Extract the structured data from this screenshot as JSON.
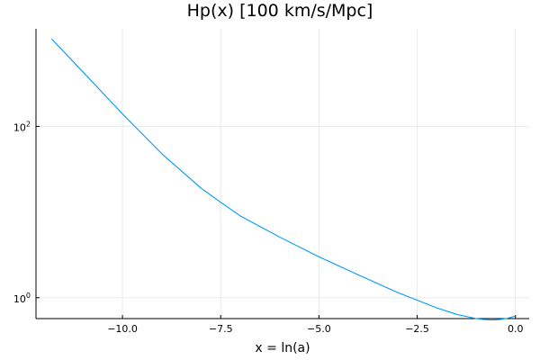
{
  "chart_data": {
    "type": "line",
    "title": "Hp(x) [100 km/s/Mpc]",
    "xlabel": "x = ln(a)",
    "ylabel": "",
    "yscale": "log10",
    "xlim": [
      -12.2,
      0.35
    ],
    "ylim": [
      0.57,
      1380
    ],
    "grid": true,
    "legend": "none",
    "x_ticks": [
      -10.0,
      -7.5,
      -5.0,
      -2.5,
      0.0
    ],
    "x_tick_labels": [
      "−10.0",
      "−7.5",
      "−5.0",
      "−2.5",
      "0.0"
    ],
    "y_ticks": [
      {
        "value": 1,
        "base": "10",
        "exp": "0"
      },
      {
        "value": 100,
        "base": "10",
        "exp": "2"
      }
    ],
    "series": [
      {
        "color": "#009AFA",
        "x": [
          -11.8,
          -11.0,
          -10.0,
          -9.0,
          -8.0,
          -7.5,
          -7.0,
          -6.0,
          -5.0,
          -4.0,
          -3.0,
          -2.0,
          -1.5,
          -1.0,
          -0.8,
          -0.6,
          -0.4,
          -0.2,
          0.0
        ],
        "y": [
          1050,
          430,
          140,
          48,
          19,
          13,
          9.0,
          5.1,
          3.0,
          1.85,
          1.15,
          0.76,
          0.64,
          0.57,
          0.556,
          0.551,
          0.556,
          0.575,
          0.61
        ]
      }
    ]
  }
}
